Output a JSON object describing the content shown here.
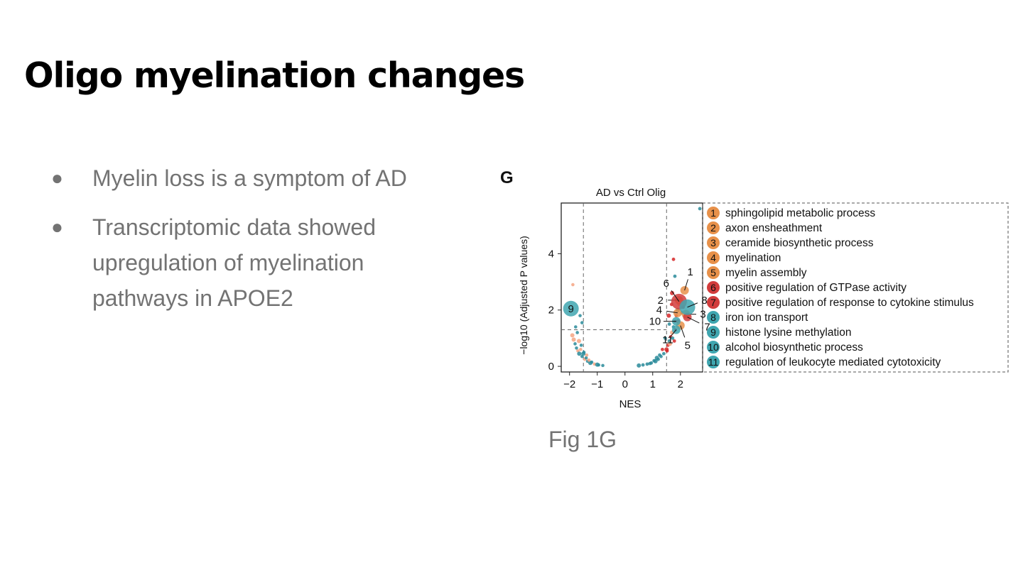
{
  "slide": {
    "title": "Oligo myelination changes",
    "bullets": [
      "Myelin loss is a symptom of AD",
      "Transcriptomic data showed upregulation of myelination pathways in APOE2"
    ],
    "caption": "Fig 1G"
  },
  "chart_data": {
    "type": "scatter",
    "panel_label": "G",
    "title": "AD vs Ctrl Olig",
    "xlabel": "NES",
    "ylabel": "−log10 (Adjusted P values)",
    "xlim": [
      -2.3,
      2.8
    ],
    "ylim": [
      -0.2,
      5.8
    ],
    "xticks": [
      -2,
      -1,
      0,
      1,
      2
    ],
    "xtick_labels": [
      "−2",
      "−1",
      "0",
      "1",
      "2"
    ],
    "yticks": [
      0,
      2,
      4
    ],
    "ytick_labels": [
      "0",
      "2",
      "4"
    ],
    "thresholds": {
      "x": [
        -1.5,
        1.5
      ],
      "y": 1.3
    },
    "colors": {
      "up": "#d62728",
      "up_light": "#f4a582",
      "down": "#2a8b9a",
      "orange": "#e8914a",
      "red": "#d23c3c",
      "teal": "#3fa6b0"
    },
    "labeled_terms": [
      {
        "id": "1",
        "term": "sphingolipid metabolic process",
        "color": "#e8914a",
        "nes": 2.15,
        "neglog10p": 2.7
      },
      {
        "id": "2",
        "term": "axon ensheathment",
        "color": "#e8914a",
        "nes": 1.95,
        "neglog10p": 2.35
      },
      {
        "id": "3",
        "term": "ceramide biosynthetic process",
        "color": "#e8914a",
        "nes": 2.2,
        "neglog10p": 1.85
      },
      {
        "id": "4",
        "term": "myelination",
        "color": "#e8914a",
        "nes": 1.9,
        "neglog10p": 1.9
      },
      {
        "id": "5",
        "term": "myelin assembly",
        "color": "#e8914a",
        "nes": 2.0,
        "neglog10p": 1.45
      },
      {
        "id": "6",
        "term": "positive regulation of GTPase activity",
        "color": "#d23c3c",
        "nes": 1.95,
        "neglog10p": 2.3
      },
      {
        "id": "7",
        "term": "positive regulation of response to cytokine stimulus",
        "color": "#d23c3c",
        "nes": 2.25,
        "neglog10p": 1.75
      },
      {
        "id": "8",
        "term": "iron ion transport",
        "color": "#3fa6b0",
        "nes": 2.25,
        "neglog10p": 2.1
      },
      {
        "id": "9",
        "term": "histone lysine methylation",
        "color": "#3fa6b0",
        "nes": -1.95,
        "neglog10p": 2.05
      },
      {
        "id": "10",
        "term": "alcohol biosynthetic process",
        "color": "#3fa6b0",
        "nes": 1.85,
        "neglog10p": 1.6
      },
      {
        "id": "11",
        "term": "regulation of leukocyte mediated cytotoxicity",
        "color": "#3fa6b0",
        "nes": 1.85,
        "neglog10p": 1.3
      }
    ],
    "background_points": {
      "negative_branch": [
        [
          -1.85,
          0.95
        ],
        [
          -1.8,
          0.8
        ],
        [
          -1.75,
          0.65
        ],
        [
          -1.7,
          0.55
        ],
        [
          -1.65,
          0.45
        ],
        [
          -1.55,
          0.35
        ],
        [
          -1.45,
          0.25
        ],
        [
          -1.35,
          0.18
        ],
        [
          -1.25,
          0.12
        ],
        [
          -1.1,
          0.08
        ],
        [
          -0.95,
          0.05
        ],
        [
          -0.8,
          0.03
        ],
        [
          -1.9,
          1.1
        ],
        [
          -1.78,
          1.4
        ],
        [
          -1.72,
          1.2
        ],
        [
          -1.6,
          0.6
        ],
        [
          -1.5,
          0.45
        ],
        [
          -1.4,
          0.3
        ],
        [
          -1.3,
          0.22
        ],
        [
          -1.2,
          0.15
        ],
        [
          -1.0,
          0.06
        ],
        [
          -1.88,
          2.9
        ],
        [
          -1.62,
          1.8
        ],
        [
          -1.55,
          1.55
        ],
        [
          -1.66,
          0.9
        ],
        [
          -1.58,
          0.75
        ],
        [
          -1.48,
          0.5
        ],
        [
          -1.38,
          0.4
        ]
      ],
      "positive_branch": [
        [
          0.5,
          0.03
        ],
        [
          0.65,
          0.05
        ],
        [
          0.8,
          0.08
        ],
        [
          0.95,
          0.12
        ],
        [
          1.1,
          0.18
        ],
        [
          1.2,
          0.25
        ],
        [
          1.3,
          0.35
        ],
        [
          1.4,
          0.45
        ],
        [
          1.5,
          0.6
        ],
        [
          1.55,
          0.75
        ],
        [
          1.6,
          0.9
        ],
        [
          1.65,
          1.05
        ],
        [
          1.7,
          1.2
        ],
        [
          1.75,
          1.4
        ],
        [
          1.8,
          1.6
        ],
        [
          1.85,
          1.8
        ],
        [
          1.9,
          2.0
        ],
        [
          1.95,
          2.2
        ],
        [
          2.0,
          2.4
        ],
        [
          1.6,
          1.5
        ],
        [
          1.7,
          2.6
        ],
        [
          1.75,
          3.8
        ],
        [
          1.8,
          3.2
        ],
        [
          1.68,
          2.2
        ],
        [
          1.58,
          1.8
        ],
        [
          1.45,
          1.0
        ],
        [
          1.35,
          0.6
        ],
        [
          1.25,
          0.4
        ],
        [
          1.15,
          0.3
        ],
        [
          1.05,
          0.2
        ],
        [
          0.9,
          0.1
        ],
        [
          2.7,
          5.6
        ],
        [
          1.62,
          0.8
        ],
        [
          1.52,
          0.55
        ],
        [
          1.72,
          1.0
        ],
        [
          1.82,
          1.3
        ],
        [
          1.92,
          1.6
        ],
        [
          2.05,
          1.9
        ],
        [
          2.1,
          2.1
        ],
        [
          1.78,
          0.9
        ]
      ]
    }
  }
}
